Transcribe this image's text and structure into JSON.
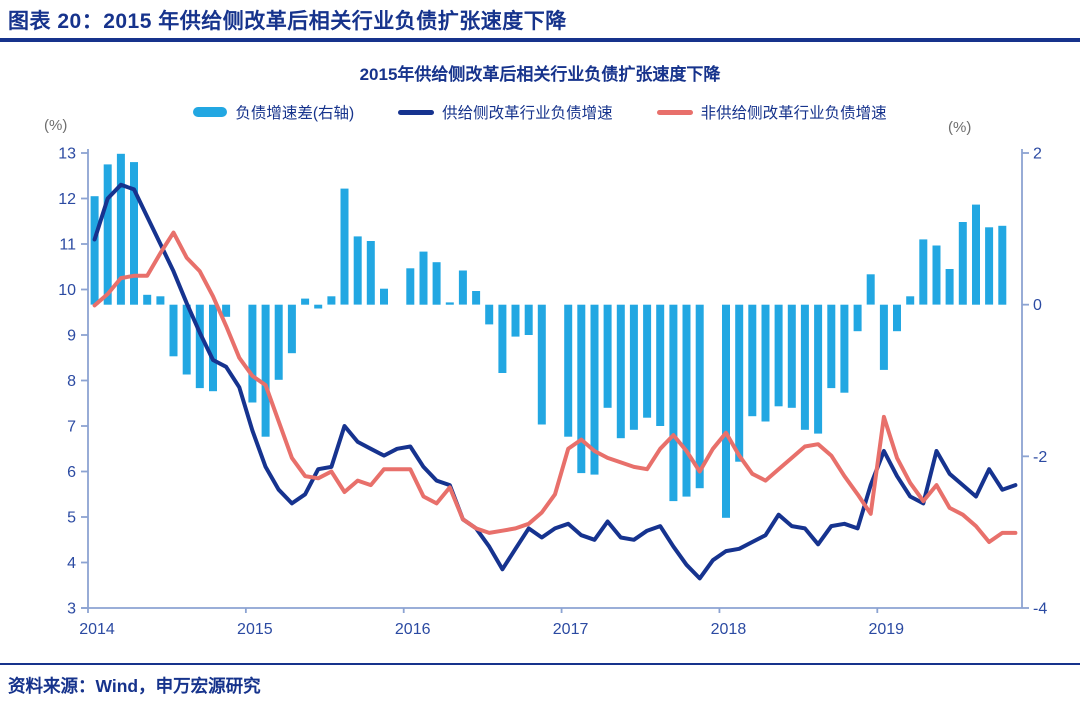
{
  "header": {
    "title": "图表 20：2015 年供给侧改革后相关行业负债扩张速度下降"
  },
  "chart": {
    "title": "2015年供给侧改革后相关行业负债扩张速度下降",
    "left_axis_unit": "(%)",
    "right_axis_unit": "(%)"
  },
  "legend": {
    "items": [
      {
        "label": "负债增速差(右轴)",
        "color": "#22A7E2",
        "swatch": "bar"
      },
      {
        "label": "供给侧改革行业负债增速",
        "color": "#16338F",
        "swatch": "line"
      },
      {
        "label": "非供给侧改革行业负债增速",
        "color": "#E8706B",
        "swatch": "line"
      }
    ]
  },
  "footer": {
    "source": "资料来源：Wind，申万宏源研究"
  },
  "chart_data": {
    "type": "combo-bar-line",
    "title": "2015年供给侧改革后相关行业负债扩张速度下降",
    "frequency": "monthly",
    "x": [
      "2014-01",
      "2014-02",
      "2014-03",
      "2014-04",
      "2014-05",
      "2014-06",
      "2014-07",
      "2014-08",
      "2014-09",
      "2014-10",
      "2014-11",
      "2014-12",
      "2015-01",
      "2015-02",
      "2015-03",
      "2015-04",
      "2015-05",
      "2015-06",
      "2015-07",
      "2015-08",
      "2015-09",
      "2015-10",
      "2015-11",
      "2015-12",
      "2016-01",
      "2016-02",
      "2016-03",
      "2016-04",
      "2016-05",
      "2016-06",
      "2016-07",
      "2016-08",
      "2016-09",
      "2016-10",
      "2016-11",
      "2016-12",
      "2017-01",
      "2017-02",
      "2017-03",
      "2017-04",
      "2017-05",
      "2017-06",
      "2017-07",
      "2017-08",
      "2017-09",
      "2017-10",
      "2017-11",
      "2017-12",
      "2018-01",
      "2018-02",
      "2018-03",
      "2018-04",
      "2018-05",
      "2018-06",
      "2018-07",
      "2018-08",
      "2018-09",
      "2018-10",
      "2018-11",
      "2018-12",
      "2019-01",
      "2019-02",
      "2019-03",
      "2019-04",
      "2019-05",
      "2019-06",
      "2019-07",
      "2019-08",
      "2019-09",
      "2019-10",
      "2019-11"
    ],
    "x_tick_labels": [
      "2014",
      "2015",
      "2016",
      "2017",
      "2018",
      "2019"
    ],
    "left_axis": {
      "min": 3,
      "max": 13,
      "ticks": [
        "13",
        "12",
        "11",
        "10",
        "9",
        "8",
        "7",
        "6",
        "5",
        "4",
        "3"
      ],
      "unit": "(%)"
    },
    "right_axis": {
      "min": -4,
      "max": 2,
      "ticks": [
        "2",
        "0",
        "-2",
        "-4"
      ],
      "unit": "(%)"
    },
    "grid": false,
    "legend_position": "top",
    "axis_color": "#8CA3D2",
    "tick_color": "#2B4AA2",
    "bars": {
      "name": "负债增速差(右轴)",
      "axis": "right",
      "color": "#22A7E2",
      "values": [
        1.43,
        1.85,
        1.99,
        1.88,
        0.13,
        0.11,
        -0.68,
        -0.92,
        -1.1,
        -1.14,
        -0.16,
        null,
        -1.29,
        -1.74,
        -0.99,
        -0.64,
        0.08,
        -0.05,
        0.11,
        1.53,
        0.9,
        0.84,
        0.21,
        null,
        0.48,
        0.7,
        0.56,
        0.03,
        0.45,
        0.18,
        -0.26,
        -0.9,
        -0.42,
        -0.4,
        -1.58,
        null,
        -1.74,
        -2.22,
        -2.24,
        -1.36,
        -1.76,
        -1.65,
        -1.49,
        -1.6,
        -2.59,
        -2.53,
        -2.42,
        null,
        -2.81,
        -2.07,
        -1.47,
        -1.54,
        -1.34,
        -1.36,
        -1.65,
        -1.7,
        -1.1,
        -1.16,
        -0.35,
        0.4,
        -0.86,
        -0.35,
        0.11,
        0.86,
        0.78,
        0.47,
        1.09,
        1.32,
        1.02,
        1.04,
        null
      ]
    },
    "series": [
      {
        "id": "supply-side",
        "name": "供给侧改革行业负债增速",
        "axis": "left",
        "color": "#16338F",
        "values": [
          11.1,
          12.0,
          12.3,
          12.2,
          11.6,
          11.0,
          10.4,
          9.7,
          9.05,
          8.45,
          8.3,
          7.85,
          6.9,
          6.1,
          5.6,
          5.3,
          5.5,
          6.05,
          6.1,
          7.0,
          6.65,
          6.5,
          6.35,
          6.5,
          6.55,
          6.1,
          5.8,
          5.7,
          4.95,
          4.75,
          4.35,
          3.85,
          4.3,
          4.75,
          4.55,
          4.75,
          4.85,
          4.6,
          4.5,
          4.9,
          4.55,
          4.5,
          4.7,
          4.8,
          4.35,
          3.95,
          3.65,
          4.05,
          4.25,
          4.3,
          4.45,
          4.6,
          5.05,
          4.8,
          4.75,
          4.4,
          4.8,
          4.85,
          4.75,
          5.7,
          6.45,
          5.9,
          5.45,
          5.3,
          6.45,
          5.95,
          5.7,
          5.45,
          6.05,
          5.6,
          5.7
        ]
      },
      {
        "id": "non-supply-side",
        "name": "非供给侧改革行业负债增速",
        "axis": "left",
        "color": "#E8706B",
        "values": [
          9.65,
          9.9,
          10.25,
          10.3,
          10.3,
          10.8,
          11.25,
          10.7,
          10.4,
          9.85,
          9.2,
          8.5,
          8.1,
          7.9,
          7.1,
          6.3,
          5.9,
          5.85,
          6.0,
          5.55,
          5.8,
          5.7,
          6.05,
          6.05,
          6.05,
          5.45,
          5.3,
          5.65,
          4.95,
          4.75,
          4.65,
          4.7,
          4.75,
          4.85,
          5.1,
          5.5,
          6.5,
          6.7,
          6.45,
          6.3,
          6.2,
          6.1,
          6.05,
          6.5,
          6.8,
          6.45,
          6.0,
          6.5,
          6.85,
          6.35,
          5.95,
          5.8,
          6.05,
          6.3,
          6.55,
          6.6,
          6.35,
          5.9,
          5.5,
          5.07,
          7.2,
          6.3,
          5.75,
          5.35,
          5.7,
          5.2,
          5.05,
          4.8,
          4.45,
          4.65,
          4.65
        ]
      }
    ]
  }
}
